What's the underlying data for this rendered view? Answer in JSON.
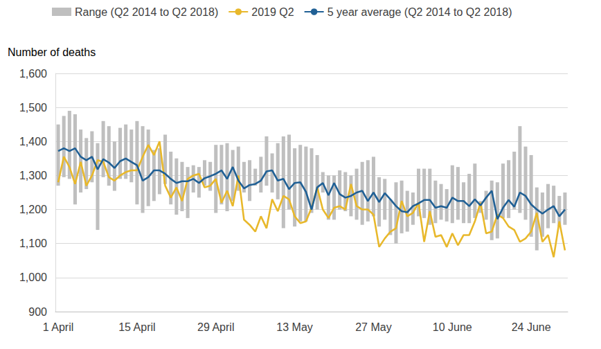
{
  "chart_data": {
    "type": "line",
    "ylabel": "Number of deaths",
    "categories": [
      "1 April",
      null,
      null,
      null,
      null,
      null,
      null,
      null,
      null,
      null,
      null,
      null,
      null,
      null,
      "15 April",
      null,
      null,
      null,
      null,
      null,
      null,
      null,
      null,
      null,
      null,
      null,
      null,
      null,
      "29 April",
      null,
      null,
      null,
      null,
      null,
      null,
      null,
      null,
      null,
      null,
      null,
      null,
      null,
      "13 May",
      null,
      null,
      null,
      null,
      null,
      null,
      null,
      null,
      null,
      null,
      null,
      null,
      null,
      "27 May",
      null,
      null,
      null,
      null,
      null,
      null,
      null,
      null,
      null,
      null,
      null,
      null,
      null,
      "10 June",
      null,
      null,
      null,
      null,
      null,
      null,
      null,
      null,
      null,
      null,
      null,
      null,
      null,
      "24 June",
      null,
      null,
      null,
      null,
      null,
      null
    ],
    "ylim": [
      900,
      1600
    ],
    "yticks": [
      900,
      {
        "value": 1000,
        "label": "1,000"
      },
      {
        "value": 1100,
        "label": "1,100"
      },
      {
        "value": 1200,
        "label": "1,200"
      },
      {
        "value": 1300,
        "label": "1,300"
      },
      {
        "value": 1400,
        "label": "1,400"
      },
      {
        "value": 1500,
        "label": "1,500"
      },
      {
        "value": 1600,
        "label": "1,600"
      }
    ],
    "grid": true,
    "legend": "top",
    "series": [
      {
        "name": "Range (Q2 2014 to Q2 2018)",
        "type": "bar",
        "color": "#bfbfbf",
        "low": [
          1270,
          1295,
          1290,
          1215,
          1250,
          1260,
          1280,
          1140,
          1295,
          1270,
          1255,
          1290,
          1290,
          1280,
          1215,
          1190,
          1210,
          1225,
          1245,
          1275,
          1215,
          1185,
          1195,
          1175,
          1250,
          1235,
          1270,
          1255,
          1190,
          1215,
          1195,
          1225,
          1255,
          1250,
          1225,
          1270,
          1250,
          1270,
          1250,
          1230,
          1145,
          1200,
          1150,
          1165,
          1165,
          1190,
          1200,
          1250,
          1170,
          1170,
          1200,
          1195,
          1180,
          1170,
          1155,
          1165,
          1180,
          1150,
          1170,
          1125,
          1100,
          1130,
          1135,
          1155,
          1180,
          1175,
          1155,
          1160,
          1170,
          1165,
          1160,
          1170,
          1160,
          1160,
          1175,
          1190,
          1170,
          1110,
          1115,
          1175,
          1175,
          1200,
          1190,
          1170,
          1120,
          1080,
          1120,
          1145,
          1160,
          1150,
          1155
        ],
        "high": [
          1450,
          1475,
          1490,
          1480,
          1435,
          1410,
          1430,
          1395,
          1460,
          1445,
          1400,
          1440,
          1450,
          1435,
          1460,
          1445,
          1435,
          1375,
          1380,
          1420,
          1370,
          1350,
          1340,
          1325,
          1330,
          1325,
          1345,
          1340,
          1390,
          1390,
          1395,
          1375,
          1385,
          1340,
          1345,
          1320,
          1355,
          1415,
          1365,
          1395,
          1415,
          1420,
          1380,
          1390,
          1385,
          1380,
          1360,
          1310,
          1300,
          1300,
          1315,
          1310,
          1300,
          1320,
          1340,
          1345,
          1355,
          1295,
          1290,
          1230,
          1280,
          1285,
          1255,
          1250,
          1320,
          1320,
          1320,
          1285,
          1275,
          1260,
          1330,
          1325,
          1280,
          1305,
          1335,
          1225,
          1255,
          1285,
          1280,
          1335,
          1345,
          1370,
          1445,
          1385,
          1360,
          1265,
          1250,
          1275,
          1270,
          1240,
          1250
        ]
      },
      {
        "name": "2019 Q2",
        "type": "line",
        "color": "#e8b82b",
        "values": [
          1280,
          1355,
          1325,
          1275,
          1340,
          1270,
          1300,
          1345,
          1340,
          1295,
          1285,
          1300,
          1310,
          1315,
          1315,
          1355,
          1390,
          1360,
          1400,
          1270,
          1235,
          1265,
          1225,
          1290,
          1300,
          1305,
          1265,
          1270,
          1290,
          1220,
          1255,
          1210,
          1300,
          1170,
          1155,
          1135,
          1180,
          1145,
          1230,
          1195,
          1240,
          1230,
          1180,
          1160,
          1165,
          1205,
          1265,
          1200,
          1175,
          1205,
          1210,
          1200,
          1275,
          1210,
          1200,
          1200,
          1185,
          1090,
          1115,
          1135,
          1145,
          1225,
          1180,
          1190,
          1220,
          1105,
          1195,
          1120,
          1125,
          1090,
          1130,
          1095,
          1125,
          1125,
          1165,
          1220,
          1130,
          1135,
          1185,
          1175,
          1150,
          1140,
          1105,
          1115,
          1135,
          1190,
          1105,
          1125,
          1060,
          1165,
          1080
        ]
      },
      {
        "name": "5 year average (Q2 2014 to Q2 2018)",
        "type": "line",
        "color": "#206095",
        "values": [
          1372,
          1380,
          1372,
          1380,
          1355,
          1345,
          1355,
          1318,
          1348,
          1338,
          1322,
          1342,
          1350,
          1340,
          1330,
          1285,
          1295,
          1315,
          1315,
          1305,
          1290,
          1278,
          1283,
          1283,
          1290,
          1278,
          1292,
          1298,
          1305,
          1315,
          1290,
          1325,
          1285,
          1262,
          1272,
          1275,
          1285,
          1312,
          1315,
          1285,
          1290,
          1260,
          1278,
          1280,
          1252,
          1200,
          1265,
          1278,
          1242,
          1278,
          1245,
          1235,
          1240,
          1250,
          1255,
          1225,
          1250,
          1222,
          1248,
          1230,
          1210,
          1195,
          1192,
          1210,
          1218,
          1228,
          1228,
          1205,
          1210,
          1205,
          1235,
          1225,
          1225,
          1210,
          1230,
          1212,
          1235,
          1255,
          1172,
          1205,
          1228,
          1208,
          1250,
          1240,
          1215,
          1200,
          1188,
          1200,
          1210,
          1180,
          1200
        ]
      }
    ]
  }
}
